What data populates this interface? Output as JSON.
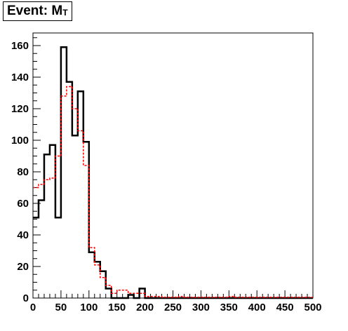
{
  "chart_data": {
    "type": "histogram",
    "title_main": "Event: M",
    "title_sub": "T",
    "xlabel": "",
    "ylabel": "",
    "xlim": [
      0,
      500
    ],
    "ylim": [
      0,
      168
    ],
    "bin_width": 10,
    "x_ticks": [
      0,
      50,
      100,
      150,
      200,
      250,
      300,
      350,
      400,
      450,
      500
    ],
    "y_ticks": [
      0,
      20,
      40,
      60,
      80,
      100,
      120,
      140,
      160
    ],
    "series": [
      {
        "style": "solid",
        "color": "#000000",
        "values": [
          51,
          62,
          91,
          97,
          51,
          159,
          137,
          103,
          131,
          99,
          29,
          23,
          17,
          6,
          0,
          0,
          0,
          2,
          0,
          6,
          0,
          0,
          0,
          0,
          0,
          0,
          0,
          0,
          0,
          0,
          0,
          0,
          0,
          0,
          0,
          0,
          0,
          0,
          0,
          0,
          0,
          0,
          0,
          0,
          0,
          0,
          0,
          0,
          0,
          0
        ]
      },
      {
        "style": "dashed",
        "color": "#ff0000",
        "values": [
          70,
          72,
          75,
          76,
          90,
          128,
          134,
          120,
          106,
          84,
          32,
          21,
          13,
          8,
          3,
          5,
          5,
          3,
          3,
          3,
          1,
          1,
          1,
          0.5,
          0.5,
          0.5,
          1,
          0.5,
          0.5,
          0.5,
          0.5,
          0.5,
          0.5,
          0.5,
          0.5,
          1,
          0.5,
          0.5,
          0.5,
          0.5,
          0.5,
          0.5,
          0.5,
          0.5,
          0.5,
          0.5,
          0.5,
          0.5,
          0.5,
          0.5
        ]
      }
    ]
  }
}
